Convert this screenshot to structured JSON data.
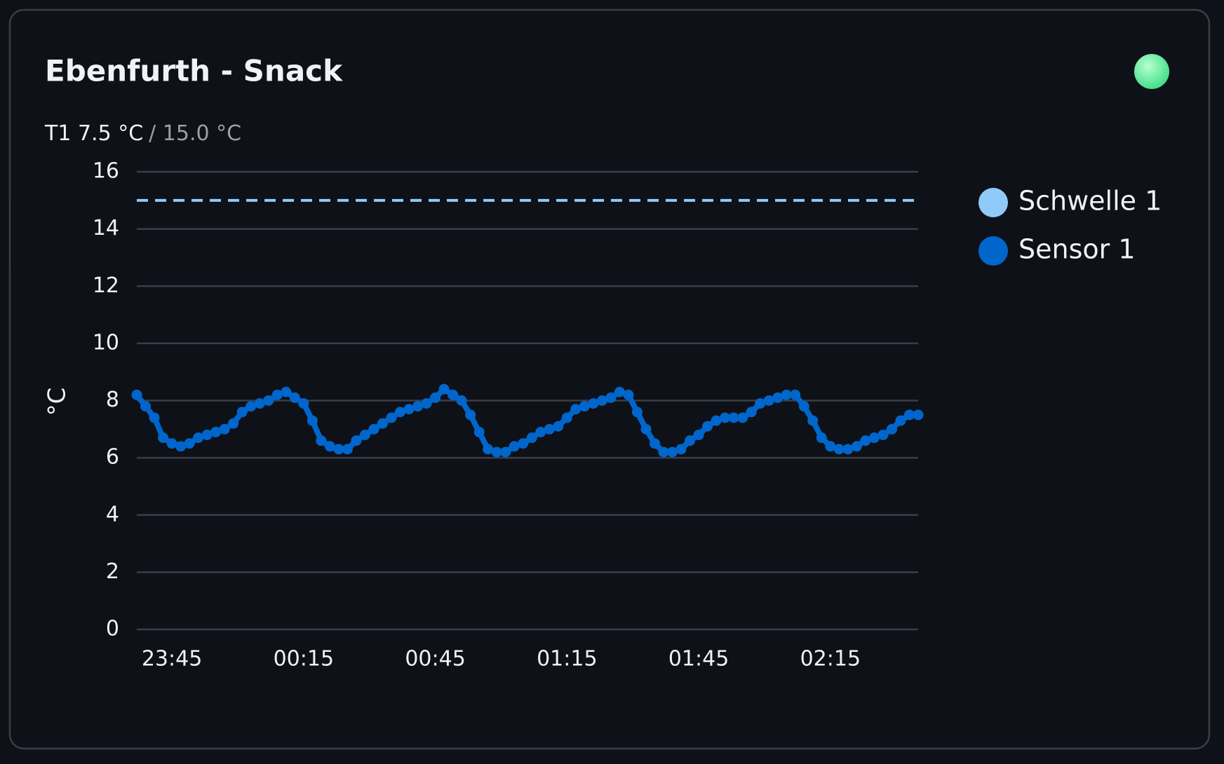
{
  "header": {
    "title": "Ebenfurth - Snack",
    "reading": "T1 7.5 °C",
    "limit": "/ 15.0 °C",
    "status_color": "#3ddc84"
  },
  "chart_data": {
    "type": "line",
    "ylabel": "°C",
    "x": [
      "23:37",
      "23:39",
      "23:41",
      "23:43",
      "23:45",
      "23:47",
      "23:49",
      "23:51",
      "23:53",
      "23:55",
      "23:57",
      "23:59",
      "00:01",
      "00:03",
      "00:05",
      "00:07",
      "00:09",
      "00:11",
      "00:13",
      "00:15",
      "00:17",
      "00:19",
      "00:21",
      "00:23",
      "00:25",
      "00:27",
      "00:29",
      "00:31",
      "00:33",
      "00:35",
      "00:37",
      "00:39",
      "00:41",
      "00:43",
      "00:45",
      "00:47",
      "00:49",
      "00:51",
      "00:53",
      "00:55",
      "00:57",
      "00:59",
      "01:01",
      "01:03",
      "01:05",
      "01:07",
      "01:09",
      "01:11",
      "01:13",
      "01:15",
      "01:17",
      "01:19",
      "01:21",
      "01:23",
      "01:25",
      "01:27",
      "01:29",
      "01:31",
      "01:33",
      "01:35",
      "01:37",
      "01:39",
      "01:41",
      "01:43",
      "01:45",
      "01:47",
      "01:49",
      "01:51",
      "01:53",
      "01:55",
      "01:57",
      "01:59",
      "02:01",
      "02:03",
      "02:05",
      "02:07",
      "02:09",
      "02:11",
      "02:13",
      "02:15",
      "02:17",
      "02:19",
      "02:21",
      "02:23",
      "02:25",
      "02:27",
      "02:29",
      "02:31",
      "02:33",
      "02:35"
    ],
    "series": [
      {
        "name": "Schwelle 1",
        "color": "#90caf9",
        "value": 15,
        "dashed": true
      },
      {
        "name": "Sensor 1",
        "color": "#0066cc",
        "values": [
          8.2,
          7.8,
          7.4,
          6.7,
          6.5,
          6.4,
          6.5,
          6.7,
          6.8,
          6.9,
          7.0,
          7.2,
          7.6,
          7.8,
          7.9,
          8.0,
          8.2,
          8.3,
          8.1,
          7.9,
          7.3,
          6.6,
          6.4,
          6.3,
          6.3,
          6.6,
          6.8,
          7.0,
          7.2,
          7.4,
          7.6,
          7.7,
          7.8,
          7.9,
          8.1,
          8.4,
          8.2,
          8.0,
          7.5,
          6.9,
          6.3,
          6.2,
          6.2,
          6.4,
          6.5,
          6.7,
          6.9,
          7.0,
          7.1,
          7.4,
          7.7,
          7.8,
          7.9,
          8.0,
          8.1,
          8.3,
          8.2,
          7.6,
          7.0,
          6.5,
          6.2,
          6.2,
          6.3,
          6.6,
          6.8,
          7.1,
          7.3,
          7.4,
          7.4,
          7.4,
          7.6,
          7.9,
          8.0,
          8.1,
          8.2,
          8.2,
          7.8,
          7.3,
          6.7,
          6.4,
          6.3,
          6.3,
          6.4,
          6.6,
          6.7,
          6.8,
          7.0,
          7.3,
          7.5,
          7.5
        ]
      }
    ],
    "xlim": [
      "23:37",
      "02:35"
    ],
    "xticks": [
      "23:45",
      "00:15",
      "00:45",
      "01:15",
      "01:45",
      "02:15"
    ],
    "ylim": [
      0,
      16
    ],
    "yticks": [
      0,
      2,
      4,
      6,
      8,
      10,
      12,
      14,
      16
    ],
    "grid": true,
    "legend": "right"
  }
}
